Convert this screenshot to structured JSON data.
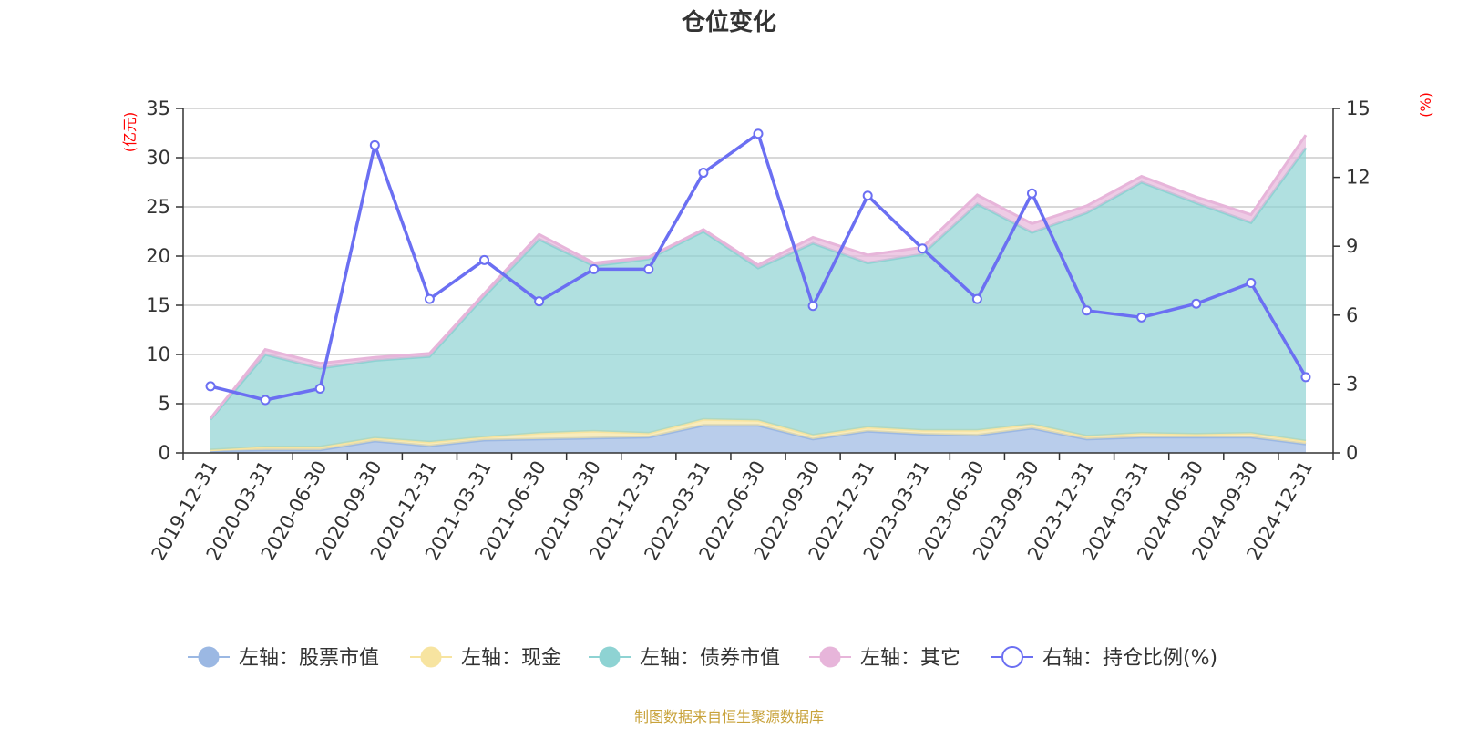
{
  "chart_data": {
    "type": "area",
    "title": "仓位变化",
    "left_axis_unit": "(亿元)",
    "right_axis_unit": "(%)",
    "left_ylim": [
      0,
      35
    ],
    "left_ticks": [
      0,
      5,
      10,
      15,
      20,
      25,
      30,
      35
    ],
    "right_ylim": [
      0,
      15
    ],
    "right_ticks": [
      0,
      3,
      6,
      9,
      12,
      15
    ],
    "categories": [
      "2019-12-31",
      "2020-03-31",
      "2020-06-30",
      "2020-09-30",
      "2020-12-31",
      "2021-03-31",
      "2021-06-30",
      "2021-09-30",
      "2021-12-31",
      "2022-03-31",
      "2022-06-30",
      "2022-09-30",
      "2022-12-31",
      "2023-03-31",
      "2023-06-30",
      "2023-09-30",
      "2023-12-31",
      "2024-03-31",
      "2024-06-30",
      "2024-09-30",
      "2024-12-31"
    ],
    "series": [
      {
        "name": "左轴：股票市值",
        "axis": "left",
        "kind": "stacked-area",
        "color": "#9bb8e3",
        "values": [
          0.2,
          0.3,
          0.3,
          1.2,
          0.7,
          1.3,
          1.4,
          1.5,
          1.6,
          2.8,
          2.8,
          1.4,
          2.2,
          1.9,
          1.8,
          2.5,
          1.4,
          1.6,
          1.6,
          1.6,
          0.9
        ]
      },
      {
        "name": "左轴：现金",
        "axis": "left",
        "kind": "stacked-area",
        "color": "#f7e4a0",
        "values": [
          0.1,
          0.3,
          0.3,
          0.3,
          0.4,
          0.3,
          0.6,
          0.7,
          0.4,
          0.6,
          0.5,
          0.4,
          0.4,
          0.4,
          0.5,
          0.4,
          0.3,
          0.4,
          0.3,
          0.4,
          0.3
        ]
      },
      {
        "name": "左轴：债券市值",
        "axis": "left",
        "kind": "stacked-area",
        "color": "#8ed3d3",
        "values": [
          3.1,
          9.4,
          8.0,
          7.9,
          8.7,
          14.3,
          19.7,
          16.8,
          17.7,
          19.1,
          15.5,
          19.5,
          16.7,
          17.9,
          23.0,
          19.5,
          22.7,
          25.5,
          23.5,
          21.4,
          29.8
        ]
      },
      {
        "name": "左轴：其它",
        "axis": "left",
        "kind": "stacked-area",
        "color": "#e7b5da",
        "values": [
          0.1,
          0.5,
          0.5,
          0.3,
          0.3,
          0.3,
          0.5,
          0.3,
          0.2,
          0.2,
          0.3,
          0.6,
          0.8,
          0.7,
          0.9,
          0.9,
          0.7,
          0.6,
          0.6,
          0.8,
          1.3
        ]
      },
      {
        "name": "右轴：持仓比例(%)",
        "axis": "right",
        "kind": "line",
        "color": "#6b6ff2",
        "values": [
          2.9,
          2.3,
          2.8,
          13.4,
          6.7,
          8.4,
          6.6,
          8.0,
          8.0,
          12.2,
          13.9,
          6.4,
          11.2,
          8.9,
          6.7,
          11.3,
          6.2,
          5.9,
          6.5,
          7.4,
          3.3
        ]
      }
    ]
  },
  "source_text": "制图数据来自恒生聚源数据库"
}
